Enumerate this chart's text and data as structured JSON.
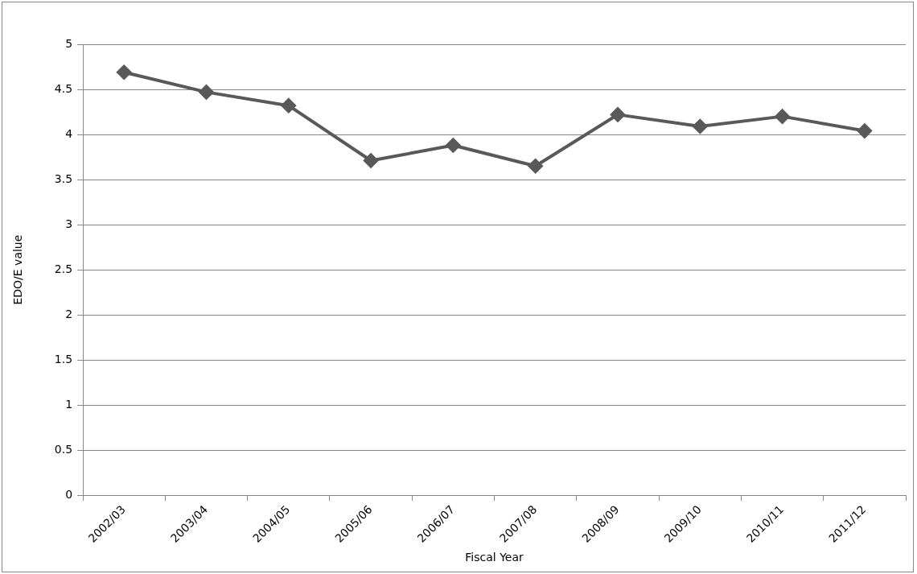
{
  "chart_data": {
    "type": "line",
    "xlabel": "Fiscal Year",
    "ylabel": "EDO/E value",
    "categories": [
      "2002/03",
      "2003/04",
      "2004/05",
      "2005/06",
      "2006/07",
      "2007/08",
      "2008/09",
      "2009/10",
      "2010/11",
      "2011/12"
    ],
    "series": [
      {
        "color": "#595959",
        "values": [
          4.69,
          4.47,
          4.32,
          3.71,
          3.88,
          3.65,
          4.22,
          4.09,
          4.2,
          4.04
        ]
      }
    ],
    "ylim": [
      0,
      5
    ],
    "yticks": [
      0,
      0.5,
      1,
      1.5,
      2,
      2.5,
      3,
      3.5,
      4,
      4.5,
      5
    ],
    "grid": "y",
    "legend": false,
    "marker": "diamond",
    "line_style": "solid"
  }
}
